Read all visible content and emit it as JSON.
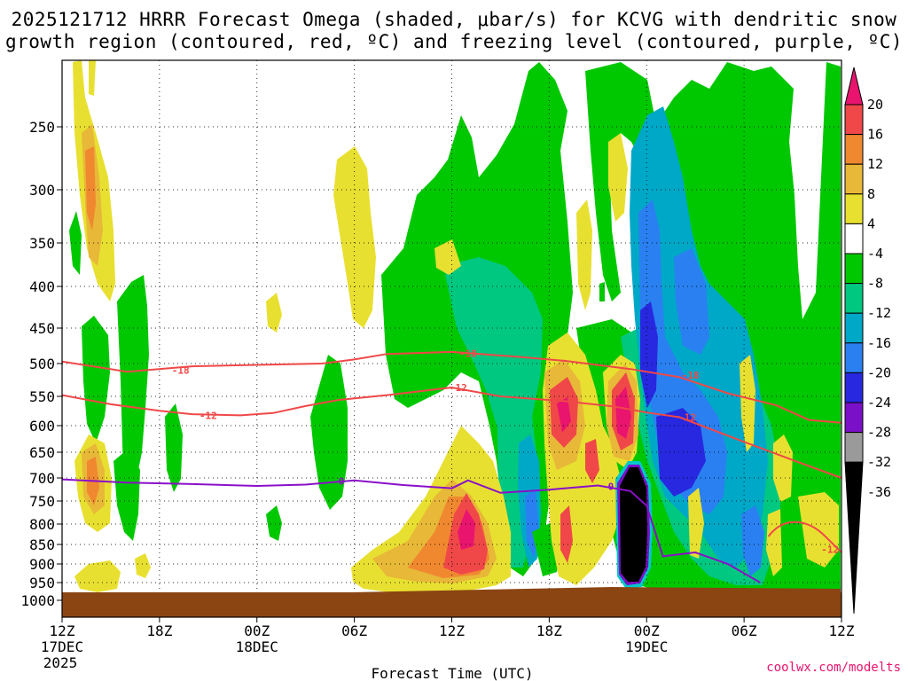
{
  "title_line1": "2025121712 HRRR Forecast Omega (shaded, μbar/s) for KCVG with dendritic snow",
  "title_line2": "growth region (contoured, red, ºC) and freezing level (contoured, purple, ºC)",
  "watermark": "coolwx.com/modelts",
  "chart_data": {
    "type": "heatmap",
    "xlabel": "Forecast Time (UTC)",
    "x_range_hours": [
      0,
      48
    ],
    "x_ticks": [
      {
        "h": 0,
        "label": "12Z",
        "sub": "17DEC",
        "sub2": "2025"
      },
      {
        "h": 6,
        "label": "18Z"
      },
      {
        "h": 12,
        "label": "00Z",
        "sub": "18DEC"
      },
      {
        "h": 18,
        "label": "06Z"
      },
      {
        "h": 24,
        "label": "12Z"
      },
      {
        "h": 30,
        "label": "18Z"
      },
      {
        "h": 36,
        "label": "00Z",
        "sub": "19DEC"
      },
      {
        "h": 42,
        "label": "06Z"
      },
      {
        "h": 48,
        "label": "12Z"
      }
    ],
    "y_ticks": [
      250,
      300,
      350,
      400,
      450,
      500,
      550,
      600,
      650,
      700,
      750,
      800,
      850,
      900,
      950,
      1000
    ],
    "y_range_hPa": [
      200,
      1000
    ],
    "y_scale": "log-pressure",
    "colorbar": {
      "labels": [
        "20",
        "16",
        "12",
        "8",
        "4",
        "-4",
        "-8",
        "-12",
        "-16",
        "-20",
        "-24",
        "-28",
        "-32",
        "-36"
      ],
      "colors": [
        "#e8146e",
        "#f04848",
        "#f08830",
        "#e8b838",
        "#e8e030",
        "#ffffff",
        "#00c800",
        "#00c880",
        "#00a8c8",
        "#2a80f0",
        "#2828e0",
        "#7a10c8",
        "#9a9a9a",
        "#000000"
      ]
    },
    "omega_cells": [
      {
        "h": 1.8,
        "p": 310,
        "c": "#f08830"
      },
      {
        "h": 1.8,
        "p": 350,
        "c": "#e8b838"
      },
      {
        "h": 1.6,
        "p": 270,
        "c": "#e8b838"
      },
      {
        "h": 1.8,
        "p": 700,
        "c": "#f04848"
      },
      {
        "h": 1.8,
        "p": 920,
        "c": "#f04848"
      },
      {
        "h": 4.2,
        "p": 560,
        "c": "#00a8c8"
      },
      {
        "h": 19.1,
        "p": 910,
        "c": "#e8b838"
      },
      {
        "h": 24.3,
        "p": 760,
        "c": "#f04848"
      },
      {
        "h": 24.6,
        "p": 850,
        "c": "#f04848"
      },
      {
        "h": 25.2,
        "p": 800,
        "c": "#e8146e"
      },
      {
        "h": 25.3,
        "p": 900,
        "c": "#e8146e"
      },
      {
        "h": 30.5,
        "p": 600,
        "c": "#e8146e"
      },
      {
        "h": 30.7,
        "p": 560,
        "c": "#f04848"
      },
      {
        "h": 28.7,
        "p": 880,
        "c": "#2a80f0"
      },
      {
        "h": 31.0,
        "p": 880,
        "c": "#e8146e"
      },
      {
        "h": 34.5,
        "p": 600,
        "c": "#e8146e"
      },
      {
        "h": 34.6,
        "p": 540,
        "c": "#f04848"
      },
      {
        "h": 36.0,
        "p": 470,
        "c": "#2828e0"
      },
      {
        "h": 36.0,
        "p": 510,
        "c": "#7a10c8"
      },
      {
        "h": 37.2,
        "p": 640,
        "c": "#2828e0"
      },
      {
        "h": 38.0,
        "p": 420,
        "c": "#2a80f0"
      },
      {
        "h": 39.8,
        "p": 440,
        "c": "#2828e0"
      },
      {
        "h": 36.2,
        "p": 720,
        "c": "#9a9a9a"
      },
      {
        "h": 42.6,
        "p": 860,
        "c": "#2828e0"
      },
      {
        "h": 47.0,
        "p": 310,
        "c": "#2a80f0"
      }
    ],
    "contours": {
      "m18": [
        [
          0,
          497
        ],
        [
          4,
          512
        ],
        [
          8,
          504
        ],
        [
          12,
          502
        ],
        [
          16,
          500
        ],
        [
          18,
          494
        ],
        [
          20,
          486
        ],
        [
          24,
          483
        ],
        [
          28,
          490
        ],
        [
          31,
          496
        ],
        [
          35,
          508
        ],
        [
          38,
          520
        ],
        [
          41,
          545
        ],
        [
          44,
          565
        ],
        [
          46,
          590
        ],
        [
          48,
          595
        ]
      ],
      "m12": [
        [
          0,
          548
        ],
        [
          3,
          563
        ],
        [
          6,
          574
        ],
        [
          8,
          580
        ],
        [
          11,
          582
        ],
        [
          13,
          578
        ],
        [
          15,
          566
        ],
        [
          17,
          556
        ],
        [
          20,
          548
        ],
        [
          24,
          536
        ],
        [
          27,
          550
        ],
        [
          31,
          558
        ],
        [
          34,
          567
        ],
        [
          36,
          577
        ],
        [
          38,
          585
        ],
        [
          42,
          630
        ],
        [
          45,
          665
        ],
        [
          48,
          700
        ]
      ],
      "fz": [
        [
          0,
          703
        ],
        [
          4,
          710
        ],
        [
          8,
          713
        ],
        [
          12,
          717
        ],
        [
          15,
          714
        ],
        [
          18,
          705
        ],
        [
          21,
          715
        ],
        [
          24,
          722
        ],
        [
          25,
          705
        ],
        [
          27,
          732
        ],
        [
          30,
          725
        ],
        [
          33,
          716
        ],
        [
          35,
          728
        ],
        [
          36,
          760
        ],
        [
          37,
          880
        ],
        [
          39,
          870
        ],
        [
          41,
          900
        ],
        [
          43,
          950
        ]
      ]
    },
    "contour_labels": [
      {
        "h": 7.3,
        "p": 510,
        "text": "-18",
        "c": "#f04848"
      },
      {
        "h": 25.0,
        "p": 485,
        "text": "-18",
        "c": "#f04848"
      },
      {
        "h": 38.7,
        "p": 517,
        "text": "-18",
        "c": "#f04848"
      },
      {
        "h": 9.0,
        "p": 582,
        "text": "-12",
        "c": "#f04848"
      },
      {
        "h": 24.4,
        "p": 536,
        "text": "-12",
        "c": "#f04848"
      },
      {
        "h": 38.5,
        "p": 585,
        "text": "-12",
        "c": "#f04848"
      },
      {
        "h": 47.3,
        "p": 862,
        "text": "-12",
        "c": "#f04848"
      },
      {
        "h": 17.2,
        "p": 707,
        "text": "0",
        "c": "#8a10c8"
      },
      {
        "h": 33.8,
        "p": 718,
        "text": "0",
        "c": "#8a10c8"
      }
    ],
    "ground_pressure": 970,
    "legend": "right-colorbar"
  }
}
